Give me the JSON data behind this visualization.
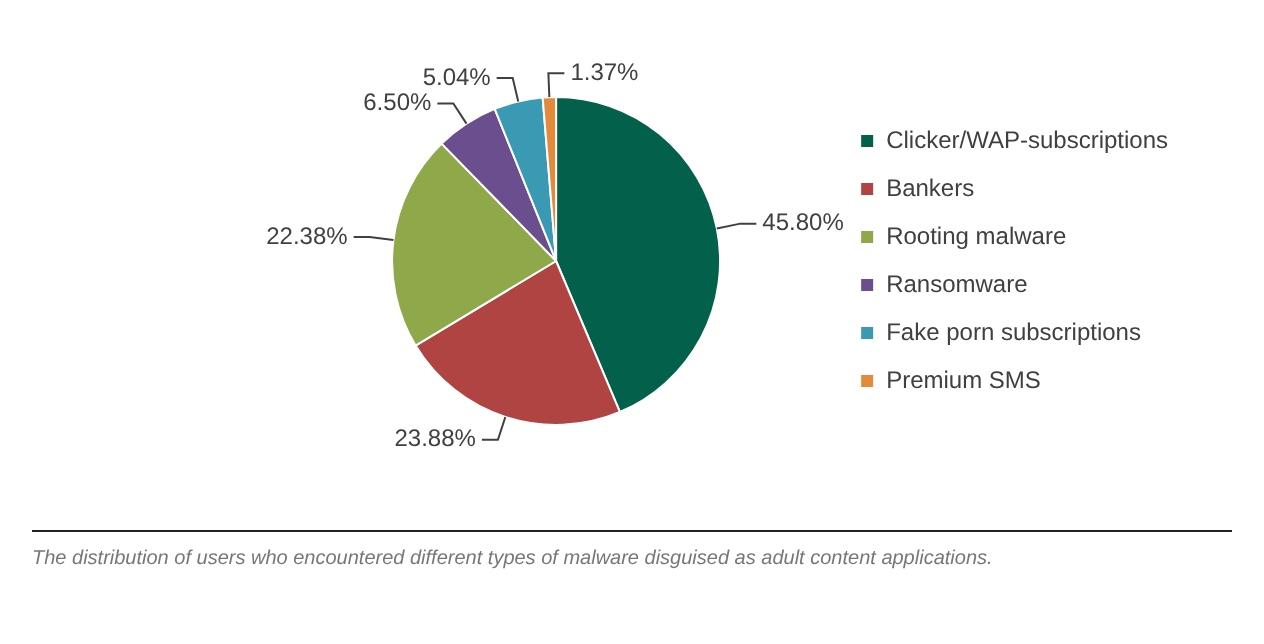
{
  "chart_data": {
    "type": "pie",
    "categories": [
      "Clicker/WAP-subscriptions",
      "Bankers",
      "Rooting malware",
      "Ransomware",
      "Fake porn subscriptions",
      "Premium SMS"
    ],
    "values": [
      45.8,
      23.88,
      22.38,
      6.5,
      5.04,
      1.37
    ],
    "colors": [
      "#03614b",
      "#b04442",
      "#8ea84a",
      "#6b4e8e",
      "#3b9ab3",
      "#e38b3a"
    ],
    "value_labels": [
      "45.80%",
      "23.88%",
      "22.38%",
      "6.50%",
      "5.04%",
      "1.37%"
    ],
    "legend": "right",
    "annotations": [
      "The distribution of users who encountered different types of malware disguised as adult content applications."
    ]
  }
}
